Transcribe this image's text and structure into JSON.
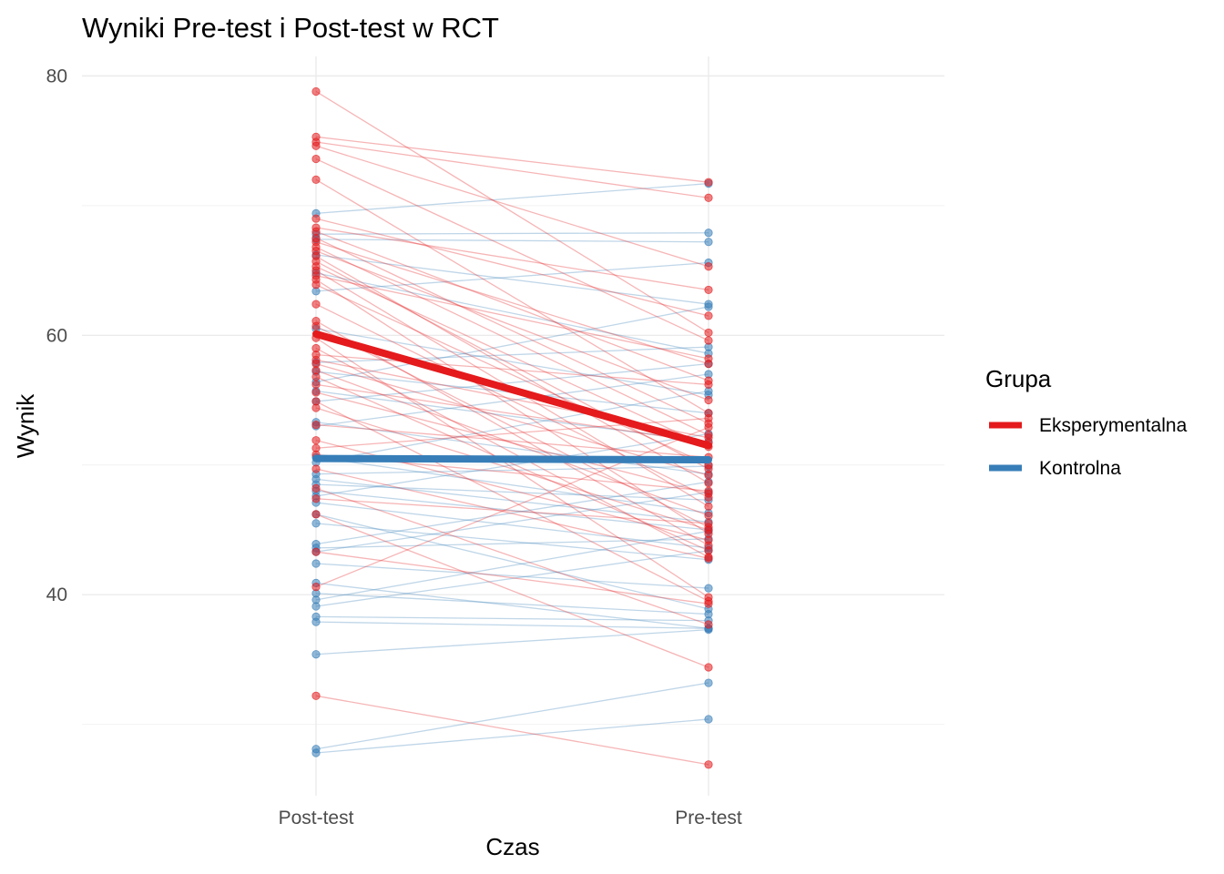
{
  "chart_data": {
    "type": "line",
    "title": "Wyniki Pre-test i Post-test w RCT",
    "xlabel": "Czas",
    "ylabel": "Wynik",
    "categories": [
      "Post-test",
      "Pre-test"
    ],
    "ylim": [
      24.5,
      81.5
    ],
    "yticks": [
      40,
      60,
      80
    ],
    "grid": true,
    "legend": {
      "title": "Grupa",
      "placement": "right",
      "entries": [
        "Eksperymentalna",
        "Kontrolna"
      ]
    },
    "colors": {
      "Eksperymentalna": "#e41a1c",
      "Kontrolna": "#377eb8"
    },
    "means": [
      {
        "name": "Eksperymentalna",
        "values": [
          60.1,
          51.5
        ]
      },
      {
        "name": "Kontrolna",
        "values": [
          50.5,
          50.4
        ]
      }
    ],
    "individuals": {
      "Eksperymentalna": [
        [
          78.8,
          60.2
        ],
        [
          75.3,
          71.8
        ],
        [
          74.9,
          70.6
        ],
        [
          74.6,
          65.3
        ],
        [
          73.6,
          59.6
        ],
        [
          72.0,
          54.0
        ],
        [
          69.0,
          61.5
        ],
        [
          68.3,
          63.5
        ],
        [
          68.0,
          56.5
        ],
        [
          67.5,
          53.2
        ],
        [
          67.2,
          57.8
        ],
        [
          66.8,
          52.3
        ],
        [
          66.5,
          55.0
        ],
        [
          66.1,
          48.6
        ],
        [
          65.7,
          49.7
        ],
        [
          65.3,
          51.4
        ],
        [
          65.0,
          46.8
        ],
        [
          64.6,
          58.2
        ],
        [
          64.3,
          44.7
        ],
        [
          63.9,
          50.0
        ],
        [
          62.4,
          47.5
        ],
        [
          61.1,
          43.8
        ],
        [
          60.7,
          45.2
        ],
        [
          59.8,
          39.8
        ],
        [
          59.0,
          42.9
        ],
        [
          58.5,
          56.2
        ],
        [
          58.1,
          52.1
        ],
        [
          57.8,
          49.2
        ],
        [
          57.3,
          46.1
        ],
        [
          56.8,
          43.4
        ],
        [
          56.2,
          51.7
        ],
        [
          55.6,
          47.8
        ],
        [
          54.9,
          39.5
        ],
        [
          54.4,
          45.0
        ],
        [
          53.1,
          50.6
        ],
        [
          51.9,
          44.2
        ],
        [
          51.3,
          53.6
        ],
        [
          50.8,
          48.0
        ],
        [
          49.7,
          42.8
        ],
        [
          48.2,
          37.7
        ],
        [
          47.4,
          45.5
        ],
        [
          46.2,
          34.4
        ],
        [
          43.3,
          39.3
        ],
        [
          40.6,
          52.9
        ],
        [
          32.2,
          26.9
        ]
      ],
      "Kontrolna": [
        [
          69.4,
          71.7
        ],
        [
          67.8,
          67.9
        ],
        [
          67.4,
          67.2
        ],
        [
          66.2,
          62.4
        ],
        [
          64.8,
          58.6
        ],
        [
          63.4,
          65.6
        ],
        [
          60.5,
          55.4
        ],
        [
          57.9,
          59.1
        ],
        [
          57.2,
          54.0
        ],
        [
          56.4,
          62.2
        ],
        [
          55.7,
          51.8
        ],
        [
          54.9,
          57.8
        ],
        [
          53.3,
          49.3
        ],
        [
          53.0,
          57.0
        ],
        [
          50.6,
          46.3
        ],
        [
          50.2,
          55.7
        ],
        [
          49.3,
          49.9
        ],
        [
          48.9,
          45.6
        ],
        [
          48.5,
          47.3
        ],
        [
          48.0,
          45.0
        ],
        [
          47.6,
          52.4
        ],
        [
          47.1,
          43.6
        ],
        [
          46.2,
          38.9
        ],
        [
          45.5,
          42.7
        ],
        [
          43.9,
          48.7
        ],
        [
          43.6,
          44.3
        ],
        [
          43.3,
          47.9
        ],
        [
          42.4,
          40.5
        ],
        [
          40.9,
          37.4
        ],
        [
          40.1,
          38.5
        ],
        [
          39.6,
          44.9
        ],
        [
          39.1,
          43.4
        ],
        [
          38.3,
          38.0
        ],
        [
          37.9,
          37.4
        ],
        [
          35.4,
          37.3
        ],
        [
          28.1,
          33.2
        ],
        [
          27.8,
          30.4
        ]
      ]
    }
  }
}
